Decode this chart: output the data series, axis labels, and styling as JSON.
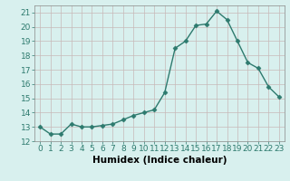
{
  "x": [
    0,
    1,
    2,
    3,
    4,
    5,
    6,
    7,
    8,
    9,
    10,
    11,
    12,
    13,
    14,
    15,
    16,
    17,
    18,
    19,
    20,
    21,
    22,
    23
  ],
  "y": [
    13.0,
    12.5,
    12.5,
    13.2,
    13.0,
    13.0,
    13.1,
    13.2,
    13.5,
    13.8,
    14.0,
    14.2,
    15.4,
    18.5,
    19.0,
    20.1,
    20.2,
    21.1,
    20.5,
    19.0,
    17.5,
    17.1,
    15.8,
    15.1
  ],
  "line_color": "#2d7a6e",
  "marker": "D",
  "markersize": 2.5,
  "linewidth": 1.0,
  "bg_color": "#d8f0ee",
  "grid_color_h": "#c8b8b8",
  "grid_color_v": "#c8b8b8",
  "xlabel": "Humidex (Indice chaleur)",
  "ylim": [
    12,
    21.5
  ],
  "yticks": [
    12,
    13,
    14,
    15,
    16,
    17,
    18,
    19,
    20,
    21
  ],
  "xticks": [
    0,
    1,
    2,
    3,
    4,
    5,
    6,
    7,
    8,
    9,
    10,
    11,
    12,
    13,
    14,
    15,
    16,
    17,
    18,
    19,
    20,
    21,
    22,
    23
  ],
  "xlabel_fontsize": 7.5,
  "tick_fontsize": 6.5,
  "tick_color": "#2d7a6e"
}
